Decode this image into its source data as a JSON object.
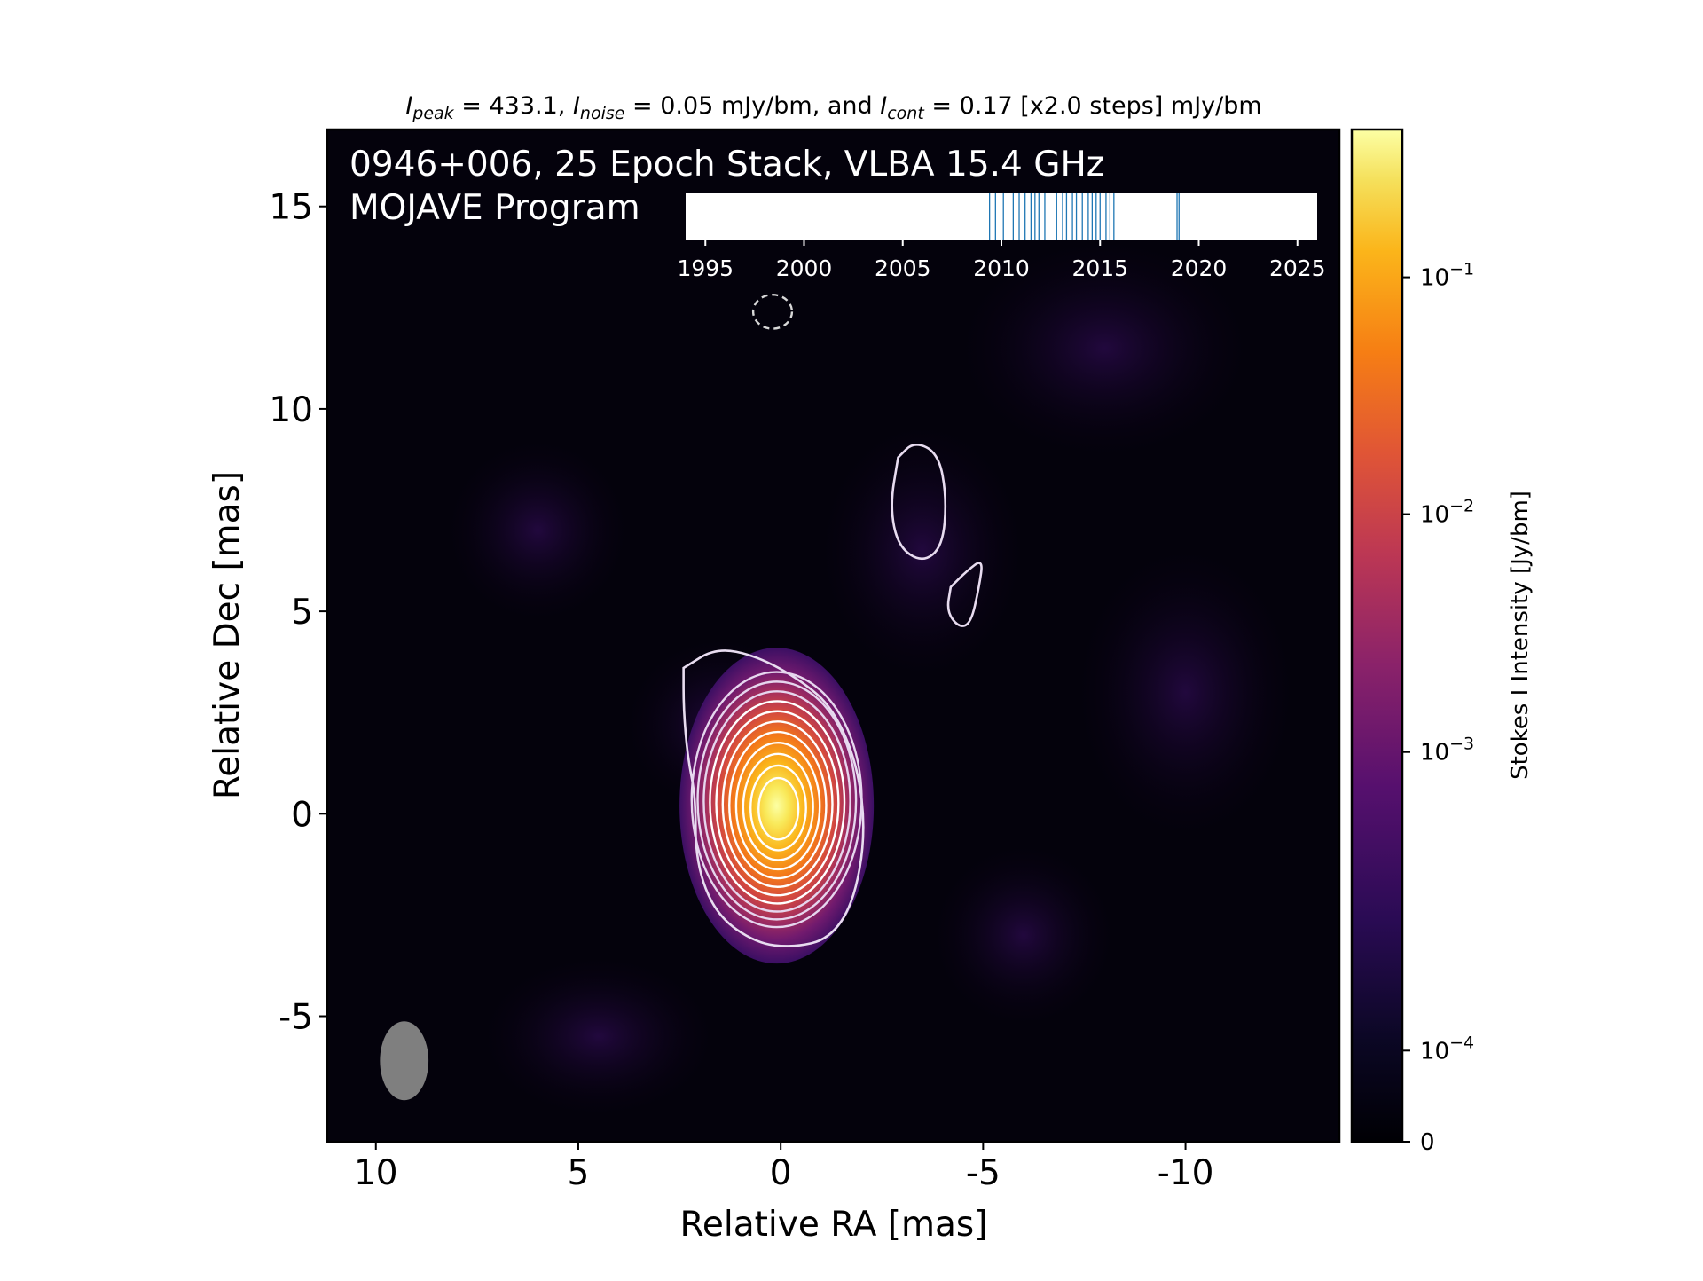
{
  "header": {
    "title_parts": [
      {
        "t": "I",
        "italic": true
      },
      {
        "t": "peak",
        "italic": true,
        "sub": true
      },
      {
        "t": " = 433.1, "
      },
      {
        "t": "I",
        "italic": true
      },
      {
        "t": "noise",
        "italic": true,
        "sub": true
      },
      {
        "t": " = 0.05 mJy/bm, and "
      },
      {
        "t": "I",
        "italic": true
      },
      {
        "t": "cont",
        "italic": true,
        "sub": true
      },
      {
        "t": " = 0.17 [x2.0 steps] mJy/bm"
      }
    ]
  },
  "map": {
    "label_line1": "0946+006, 25 Epoch Stack, VLBA 15.4 GHz",
    "label_line2": "MOJAVE Program"
  },
  "chart_data": {
    "type": "heatmap",
    "xlabel": "Relative RA [mas]",
    "ylabel": "Relative Dec [mas]",
    "xlim": [
      11.2,
      -13.8
    ],
    "ylim": [
      -8.1,
      16.9
    ],
    "xticks": [
      10,
      5,
      0,
      -5,
      -10
    ],
    "xtick_labels": [
      "10",
      "5",
      "0",
      "-5",
      "-10"
    ],
    "yticks": [
      -5,
      0,
      5,
      10,
      15
    ],
    "ytick_labels": [
      "-5",
      "0",
      "5",
      "10",
      "15"
    ],
    "peak_position_mas": [
      0,
      0
    ],
    "contour_levels_mJy_per_bm": [
      -0.17,
      0.17,
      0.34,
      0.68,
      1.36,
      2.72,
      5.44,
      10.88,
      21.76,
      43.52,
      87.04,
      174.08,
      348.16
    ],
    "beam": {
      "center_mas": [
        9.3,
        -6.1
      ],
      "major_mas": 1.95,
      "minor_mas": 1.2,
      "pa_deg": 0
    },
    "secondary_components": [
      {
        "center_mas": [
          -3.4,
          7.8
        ],
        "note": "contour at first level"
      },
      {
        "center_mas": [
          -4.6,
          5.4
        ],
        "note": "contour at first level"
      }
    ],
    "negative_contour": {
      "center_mas": [
        0.2,
        12.4
      ]
    },
    "colorbar": {
      "label": "Stokes I Intensity [Jy/bm]",
      "scale": "log",
      "colormap": "inferno",
      "ticks": [
        "10",
        "10",
        "10",
        "10",
        "0"
      ],
      "tick_exponents": [
        "−1",
        "−2",
        "−3",
        "−4",
        ""
      ]
    },
    "epoch_timeline": {
      "xlim": [
        1994,
        2026
      ],
      "ticks": [
        "1995",
        "2000",
        "2005",
        "2010",
        "2015",
        "2020",
        "2025"
      ],
      "epochs": [
        2009.4,
        2009.7,
        2010.1,
        2010.6,
        2010.9,
        2011.2,
        2011.5,
        2011.7,
        2011.9,
        2012.2,
        2012.8,
        2013.1,
        2013.3,
        2013.6,
        2013.8,
        2014.1,
        2014.4,
        2014.6,
        2014.8,
        2015.0,
        2015.3,
        2015.5,
        2015.7,
        2018.9,
        2019.0
      ],
      "colors": {
        "tick": "#1f77b4",
        "background": "#ffffff"
      }
    }
  }
}
